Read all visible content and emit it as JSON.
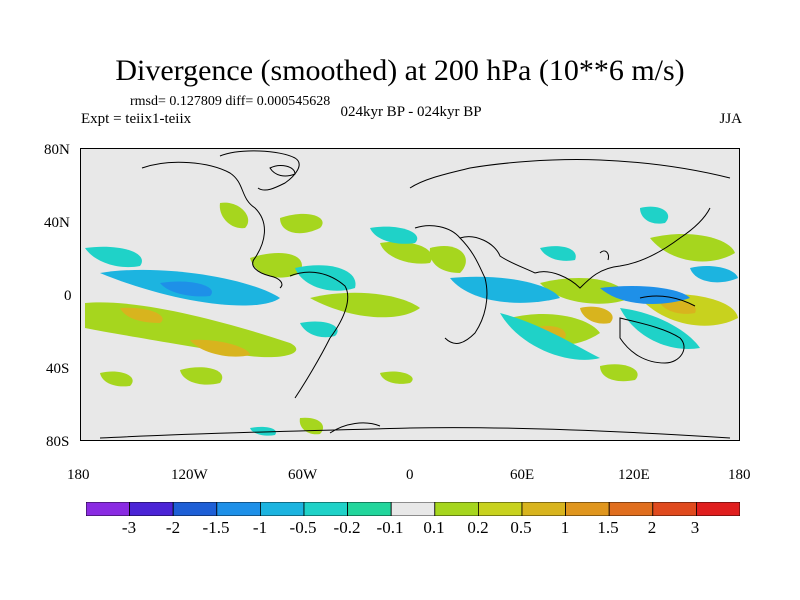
{
  "title": "Divergence (smoothed) at 200 hPa (10**6 m/s)",
  "stats": "rmsd= 0.127809 diff= 0.000545628",
  "expt": "Expt = teiix1-teiix",
  "subtitle": "024kyr BP - 024kyr BP",
  "season": "JJA",
  "map": {
    "background": "#e8e8e8",
    "lat_ticks": [
      "80N",
      "40N",
      "0",
      "40S",
      "80S"
    ],
    "lon_ticks": [
      "180",
      "120W",
      "60W",
      "0",
      "60E",
      "120E",
      "180"
    ]
  },
  "colorbar": {
    "colors": [
      "#8a2be2",
      "#4b24d6",
      "#1e5fd6",
      "#1e90e8",
      "#1cb4e0",
      "#1fd2c8",
      "#22d69c",
      "#e8e8e8",
      "#a6d61e",
      "#c8d21e",
      "#d8b41e",
      "#e0961e",
      "#e06e1e",
      "#e04a1e",
      "#e01e1e"
    ],
    "labels": [
      "-3",
      "-2",
      "-1.5",
      "-1",
      "-0.5",
      "-0.2",
      "-0.1",
      "0.1",
      "0.2",
      "0.5",
      "1",
      "1.5",
      "2",
      "3"
    ]
  }
}
